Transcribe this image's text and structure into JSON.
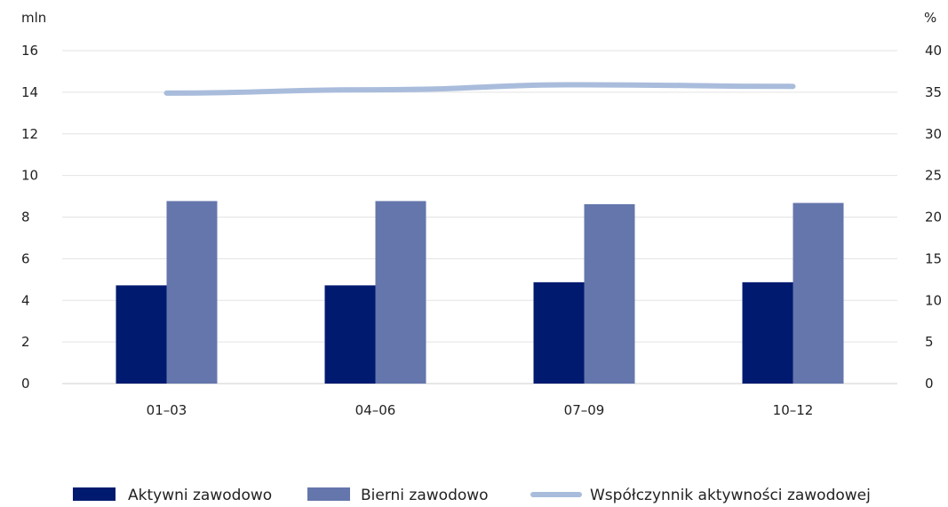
{
  "chart_data": {
    "type": "bar",
    "categories": [
      "01–03",
      "04–06",
      "07–09",
      "10–12"
    ],
    "series": [
      {
        "name": "Aktywni zawodowo",
        "type": "bar",
        "axis": "left",
        "values": [
          4.72,
          4.72,
          4.87,
          4.87
        ],
        "color": "#001a70"
      },
      {
        "name": "Bierni zawodowo",
        "type": "bar",
        "axis": "left",
        "values": [
          8.77,
          8.77,
          8.62,
          8.68
        ],
        "color": "#6476ac"
      },
      {
        "name": "Współczynnik aktywności zawodowej",
        "type": "line",
        "axis": "right",
        "values": [
          34.9,
          35.3,
          35.9,
          35.7
        ],
        "color": "#a9bcdc"
      }
    ],
    "y_left": {
      "unit": "mln",
      "ylim": [
        0,
        16
      ],
      "ticks": [
        "0",
        "2",
        "4",
        "6",
        "8",
        "10",
        "12",
        "14",
        "16"
      ]
    },
    "y_right": {
      "unit": "%",
      "ylim": [
        0,
        40
      ],
      "ticks": [
        "0",
        "5",
        "10",
        "15",
        "20",
        "25",
        "30",
        "35",
        "40"
      ]
    },
    "grid": true,
    "legend_position": "bottom"
  }
}
